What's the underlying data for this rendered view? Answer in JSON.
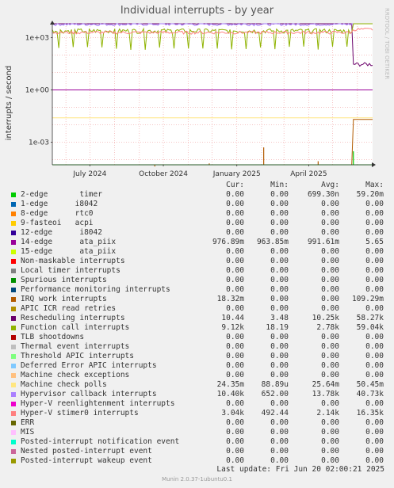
{
  "title": "Individual interrupts - by year",
  "ylabel": "interrupts / second",
  "side_label": "RRDTOOL / TOBI OETIKER",
  "legend_headers": {
    "cur": "Cur:",
    "min": "Min:",
    "avg": "Avg:",
    "max": "Max:"
  },
  "legend": [
    {
      "name": "2-edge       timer",
      "color": "#00cc00",
      "cur": "0.00",
      "min": "0.00",
      "avg": "699.30n",
      "max": "59.20m"
    },
    {
      "name": "1-edge      i8042",
      "color": "#0066b3",
      "cur": "0.00",
      "min": "0.00",
      "avg": "0.00",
      "max": "0.00"
    },
    {
      "name": "8-edge      rtc0",
      "color": "#ff8000",
      "cur": "0.00",
      "min": "0.00",
      "avg": "0.00",
      "max": "0.00"
    },
    {
      "name": "9-fasteoi   acpi",
      "color": "#ffcc00",
      "cur": "0.00",
      "min": "0.00",
      "avg": "0.00",
      "max": "0.00"
    },
    {
      "name": "12-edge      i8042",
      "color": "#330099",
      "cur": "0.00",
      "min": "0.00",
      "avg": "0.00",
      "max": "0.00"
    },
    {
      "name": "14-edge      ata_piix",
      "color": "#990099",
      "cur": "976.89m",
      "min": "963.85m",
      "avg": "991.61m",
      "max": "5.65"
    },
    {
      "name": "15-edge      ata_piix",
      "color": "#ccff00",
      "cur": "0.00",
      "min": "0.00",
      "avg": "0.00",
      "max": "0.00"
    },
    {
      "name": "Non-maskable interrupts",
      "color": "#ff0000",
      "cur": "0.00",
      "min": "0.00",
      "avg": "0.00",
      "max": "0.00"
    },
    {
      "name": "Local timer interrupts",
      "color": "#808080",
      "cur": "0.00",
      "min": "0.00",
      "avg": "0.00",
      "max": "0.00"
    },
    {
      "name": "Spurious interrupts",
      "color": "#008f00",
      "cur": "0.00",
      "min": "0.00",
      "avg": "0.00",
      "max": "0.00"
    },
    {
      "name": "Performance monitoring interrupts",
      "color": "#00487d",
      "cur": "0.00",
      "min": "0.00",
      "avg": "0.00",
      "max": "0.00"
    },
    {
      "name": "IRQ work interrupts",
      "color": "#b35a00",
      "cur": "18.32m",
      "min": "0.00",
      "avg": "0.00",
      "max": "109.29m"
    },
    {
      "name": "APIC ICR read retries",
      "color": "#b38f00",
      "cur": "0.00",
      "min": "0.00",
      "avg": "0.00",
      "max": "0.00"
    },
    {
      "name": "Rescheduling interrupts",
      "color": "#6b006b",
      "cur": "10.44",
      "min": "3.48",
      "avg": "10.25k",
      "max": "58.27k"
    },
    {
      "name": "Function call interrupts",
      "color": "#8fb300",
      "cur": "9.12k",
      "min": "18.19",
      "avg": "2.78k",
      "max": "59.04k"
    },
    {
      "name": "TLB shootdowns",
      "color": "#b30000",
      "cur": "0.00",
      "min": "0.00",
      "avg": "0.00",
      "max": "0.00"
    },
    {
      "name": "Thermal event interrupts",
      "color": "#bebebe",
      "cur": "0.00",
      "min": "0.00",
      "avg": "0.00",
      "max": "0.00"
    },
    {
      "name": "Threshold APIC interrupts",
      "color": "#80ff80",
      "cur": "0.00",
      "min": "0.00",
      "avg": "0.00",
      "max": "0.00"
    },
    {
      "name": "Deferred Error APIC interrupts",
      "color": "#80c9ff",
      "cur": "0.00",
      "min": "0.00",
      "avg": "0.00",
      "max": "0.00"
    },
    {
      "name": "Machine check exceptions",
      "color": "#ffc080",
      "cur": "0.00",
      "min": "0.00",
      "avg": "0.00",
      "max": "0.00"
    },
    {
      "name": "Machine check polls",
      "color": "#ffe680",
      "cur": "24.35m",
      "min": "88.89u",
      "avg": "25.64m",
      "max": "50.45m"
    },
    {
      "name": "Hypervisor callback interrupts",
      "color": "#aa80ff",
      "cur": "10.40k",
      "min": "652.00",
      "avg": "13.78k",
      "max": "40.73k"
    },
    {
      "name": "Hyper-V reenlightenment interrupts",
      "color": "#ee00cc",
      "cur": "0.00",
      "min": "0.00",
      "avg": "0.00",
      "max": "0.00"
    },
    {
      "name": "Hyper-V stimer0 interrupts",
      "color": "#ff8080",
      "cur": "3.04k",
      "min": "492.44",
      "avg": "2.14k",
      "max": "16.35k"
    },
    {
      "name": "ERR",
      "color": "#666600",
      "cur": "0.00",
      "min": "0.00",
      "avg": "0.00",
      "max": "0.00"
    },
    {
      "name": "MIS",
      "color": "#ffbfff",
      "cur": "0.00",
      "min": "0.00",
      "avg": "0.00",
      "max": "0.00"
    },
    {
      "name": "Posted-interrupt notification event",
      "color": "#00ffcc",
      "cur": "0.00",
      "min": "0.00",
      "avg": "0.00",
      "max": "0.00"
    },
    {
      "name": "Nested posted-interrupt event",
      "color": "#cc6699",
      "cur": "0.00",
      "min": "0.00",
      "avg": "0.00",
      "max": "0.00"
    },
    {
      "name": "Posted-interrupt wakeup event",
      "color": "#999900",
      "cur": "0.00",
      "min": "0.00",
      "avg": "0.00",
      "max": "0.00"
    }
  ],
  "last_update": "Last update: Fri Jun 20 02:00:21 2025",
  "footer": "Munin 2.0.37-1ubuntu0.1",
  "chart_data": {
    "type": "line",
    "title": "Individual interrupts - by year",
    "ylabel": "interrupts / second",
    "y_scale": "log",
    "y_ticks": [
      {
        "value": 0.001,
        "label": "1e-03"
      },
      {
        "value": 1,
        "label": "1e+00"
      },
      {
        "value": 1000,
        "label": "1e+03"
      }
    ],
    "x_ticks": [
      {
        "value": "2024-07",
        "label": "July 2024"
      },
      {
        "value": "2024-10",
        "label": "October 2024"
      },
      {
        "value": "2025-01",
        "label": "January 2025"
      },
      {
        "value": "2025-04",
        "label": "April 2025"
      }
    ],
    "series": [
      {
        "name": "Rescheduling interrupts",
        "color": "#6b006b",
        "level": 8000,
        "late_level": 30,
        "jitter": 0.25
      },
      {
        "name": "Hypervisor callback interrupts",
        "color": "#aa80ff",
        "level": 6000,
        "late_level": 30000,
        "jitter": 0.2
      },
      {
        "name": "Function call interrupts",
        "color": "#8fb300",
        "level": 2500,
        "dip": 250,
        "late_level": 9000,
        "jitter": 0.3
      },
      {
        "name": "Hyper-V stimer0 interrupts",
        "color": "#ff8080",
        "level": 2000,
        "late_level": 3000,
        "jitter": 0.2
      },
      {
        "name": "14-edge      ata_piix",
        "color": "#990099",
        "level": 1,
        "late_level": 1,
        "jitter": 0
      },
      {
        "name": "Machine check polls",
        "color": "#ffe680",
        "level": 0.025,
        "late_level": 0.025,
        "jitter": 0
      },
      {
        "name": "IRQ work interrupts",
        "color": "#b35a00",
        "level": 0,
        "late_level": 0.02,
        "spikes": [
          5e-05,
          4e-05,
          6e-05,
          0.0005,
          8e-05
        ],
        "jitter": 0
      },
      {
        "name": "2-edge       timer",
        "color": "#00cc00",
        "level": 0,
        "late_level": 0,
        "spikes": [
          0.0003
        ],
        "jitter": 0
      }
    ]
  }
}
